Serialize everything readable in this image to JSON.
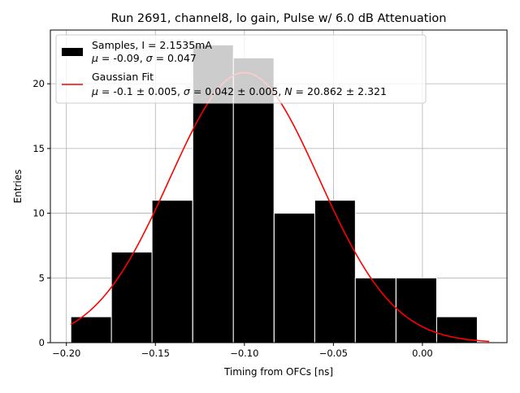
{
  "chart_data": {
    "type": "bar",
    "title": "Run 2691, channel8, lo gain, Pulse w/ 6.0 dB Attenuation",
    "xlabel": "Timing from OFCs [ns]",
    "ylabel": "Entries",
    "xlim": [
      -0.209,
      0.0475
    ],
    "ylim": [
      0,
      24.15
    ],
    "x_ticks": [
      -0.2,
      -0.15,
      -0.1,
      -0.05,
      0.0
    ],
    "x_tick_labels": [
      "−0.20",
      "−0.15",
      "−0.10",
      "−0.05",
      "0.00"
    ],
    "y_ticks": [
      0,
      5,
      10,
      15,
      20
    ],
    "y_tick_labels": [
      "0",
      "5",
      "10",
      "15",
      "20"
    ],
    "grid": true,
    "legend_position": "top-left",
    "histogram": {
      "name": "Samples",
      "color": "#000000",
      "bin_edges": [
        -0.1975,
        -0.1747,
        -0.1519,
        -0.129,
        -0.1062,
        -0.0833,
        -0.0605,
        -0.0377,
        -0.0148,
        0.008,
        0.0309
      ],
      "bar_width": 0.0228,
      "values": [
        2,
        7,
        11,
        23,
        22,
        10,
        11,
        5,
        5,
        2
      ]
    },
    "fit": {
      "name": "Gaussian Fit",
      "color": "#ff0000",
      "mu": -0.1,
      "sigma": 0.042,
      "N": 20.862,
      "x_range": [
        -0.1975,
        0.0375
      ]
    },
    "legend": {
      "samples_line1": "Samples, I = 2.1535mA",
      "samples_line2": {
        "mu_sym": "μ",
        "mu_val": " = -0.09, ",
        "sigma_sym": "σ",
        "sigma_val": " = 0.047"
      },
      "fit_line1": "Gaussian Fit",
      "fit_line2": {
        "mu_sym": "μ",
        "mu_val": " = -0.1 ± 0.005, ",
        "sigma_sym": "σ",
        "sigma_val": " = 0.042 ± 0.005, ",
        "n_sym": "N",
        "n_val": " = 20.862 ± 2.321"
      }
    }
  }
}
